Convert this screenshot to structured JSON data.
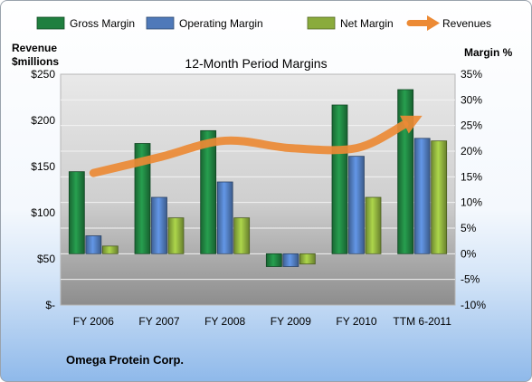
{
  "chart_data": {
    "type": "bar",
    "title": "12-Month Period Margins",
    "left_axis_label": [
      "Revenue",
      "$millions"
    ],
    "right_axis_label": "Margin %",
    "categories": [
      "FY 2006",
      "FY 2007",
      "FY 2008",
      "FY 2009",
      "FY 2010",
      "TTM 6-2011"
    ],
    "left_ticks": [
      "$-",
      "$50",
      "$100",
      "$150",
      "$200",
      "$250"
    ],
    "right_ticks": [
      "-10%",
      "-5%",
      "0%",
      "5%",
      "10%",
      "15%",
      "20%",
      "25%",
      "30%",
      "35%"
    ],
    "left_ylim": [
      0,
      250
    ],
    "right_ylim": [
      -10,
      35
    ],
    "legend_position": "top",
    "series": [
      {
        "name": "Gross Margin",
        "axis": "right",
        "type": "bar",
        "color": "#1f7f3f",
        "values": [
          16,
          21.5,
          24,
          -2.5,
          29,
          32
        ]
      },
      {
        "name": "Operating Margin",
        "axis": "right",
        "type": "bar",
        "color": "#4f79b9",
        "values": [
          3.5,
          11,
          14,
          -2.5,
          19,
          22.5
        ]
      },
      {
        "name": "Net Margin",
        "axis": "right",
        "type": "bar",
        "color": "#8aab3c",
        "values": [
          1.5,
          7,
          7,
          -2,
          11,
          22
        ]
      },
      {
        "name": "Revenues",
        "axis": "left",
        "type": "line",
        "color": "#ec8a35",
        "values": [
          143,
          160,
          178,
          170,
          170,
          205
        ]
      }
    ],
    "gridlines": true
  },
  "footer": {
    "company": "Omega Protein Corp."
  }
}
